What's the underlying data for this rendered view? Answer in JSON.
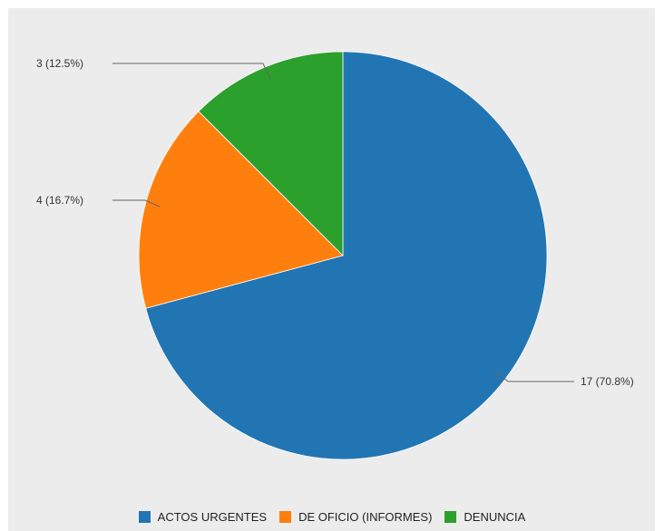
{
  "chart_data": {
    "type": "pie",
    "slices": [
      {
        "name": "ACTOS URGENTES",
        "value": 17,
        "label": "17 (70.8%)",
        "color": "#2275b3"
      },
      {
        "name": "DE OFICIO (INFORMES)",
        "value": 4,
        "label": "4 (16.7%)",
        "color": "#ff7f0e"
      },
      {
        "name": "DENUNCIA",
        "value": 3,
        "label": "3 (12.5%)",
        "color": "#2ca02c"
      }
    ],
    "start": "12 o'clock",
    "direction": "clockwise",
    "legend_position": "bottom"
  }
}
